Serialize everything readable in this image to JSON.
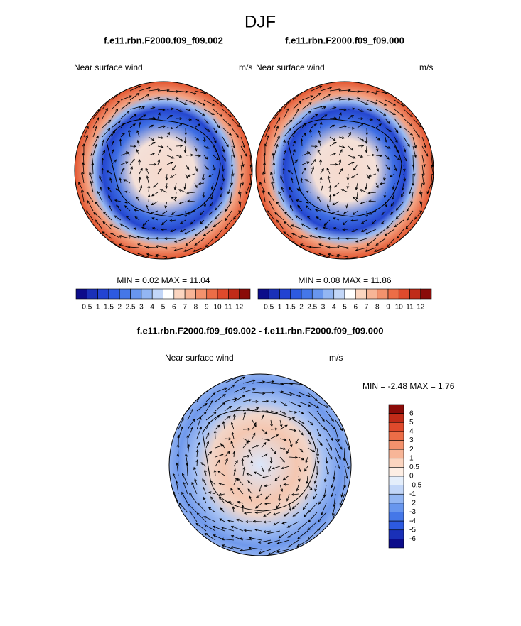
{
  "title": "DJF",
  "panels": [
    {
      "title": "f.e11.rbn.F2000.f09_f09.002",
      "left_label": "Near surface wind",
      "right_label": "m/s",
      "stats": "MIN =   0.02 MAX =  11.04",
      "colorbar": {
        "labels": [
          "0.5",
          "1",
          "1.5",
          "2",
          "2.5",
          "3",
          "4",
          "5",
          "6",
          "7",
          "8",
          "9",
          "10",
          "11",
          "12"
        ],
        "colors": [
          "#0c0c8a",
          "#1a30b8",
          "#2343d2",
          "#2d5ae0",
          "#4577e8",
          "#6896ee",
          "#93b6f3",
          "#c2d6f8",
          "#ffffff",
          "#fbd5c0",
          "#f7b597",
          "#f3926d",
          "#ec6d47",
          "#df4a2c",
          "#c02b18",
          "#8a0b08"
        ]
      }
    },
    {
      "title": "f.e11.rbn.F2000.f09_f09.000",
      "left_label": "Near surface wind",
      "right_label": "m/s",
      "stats": "MIN =   0.08 MAX =  11.86",
      "colorbar": {
        "labels": [
          "0.5",
          "1",
          "1.5",
          "2",
          "2.5",
          "3",
          "4",
          "5",
          "6",
          "7",
          "8",
          "9",
          "10",
          "11",
          "12"
        ],
        "colors": [
          "#0c0c8a",
          "#1a30b8",
          "#2343d2",
          "#2d5ae0",
          "#4577e8",
          "#6896ee",
          "#93b6f3",
          "#c2d6f8",
          "#ffffff",
          "#fbd5c0",
          "#f7b597",
          "#f3926d",
          "#ec6d47",
          "#df4a2c",
          "#c02b18",
          "#8a0b08"
        ]
      }
    }
  ],
  "diff_panel": {
    "title": "f.e11.rbn.F2000.f09_f09.002 - f.e11.rbn.F2000.f09_f09.000",
    "left_label": "Near surface wind",
    "right_label": "m/s",
    "stats": "MIN =  -2.48 MAX =   1.76",
    "colorbar": {
      "labels": [
        "6",
        "5",
        "4",
        "3",
        "2",
        "1",
        "0.5",
        "0",
        "-0.5",
        "-1",
        "-2",
        "-3",
        "-4",
        "-5",
        "-6"
      ],
      "colors": [
        "#8a0b08",
        "#c02b18",
        "#df4a2c",
        "#ec6d47",
        "#f3926d",
        "#f7b597",
        "#fbd5c0",
        "#fdeee4",
        "#e4eefb",
        "#c2d6f8",
        "#93b6f3",
        "#6896ee",
        "#4577e8",
        "#2d5ae0",
        "#1a30b8",
        "#0c0c8a"
      ]
    }
  }
}
